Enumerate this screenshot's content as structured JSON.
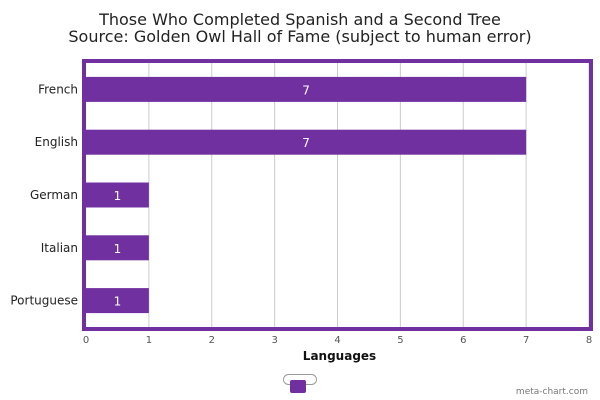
{
  "chart_data": {
    "type": "bar",
    "orientation": "horizontal",
    "title": "Those Who Completed Spanish and a Second Tree",
    "subtitle": "Source: Golden Owl Hall of Fame (subject to human error)",
    "xlabel": "Languages",
    "ylabel": "",
    "categories": [
      "French",
      "English",
      "German",
      "Italian",
      "Portuguese"
    ],
    "values": [
      7,
      7,
      1,
      1,
      1
    ],
    "xlim": [
      0,
      8
    ],
    "xticks": [
      0,
      1,
      2,
      3,
      4,
      5,
      6,
      7,
      8
    ],
    "grid": true,
    "bar_color": "#7030a0",
    "border_color": "#7030a0",
    "data_labels": true,
    "legend": {
      "placement": "bottom",
      "entries": [
        ""
      ]
    }
  },
  "watermark": "meta-chart.com"
}
